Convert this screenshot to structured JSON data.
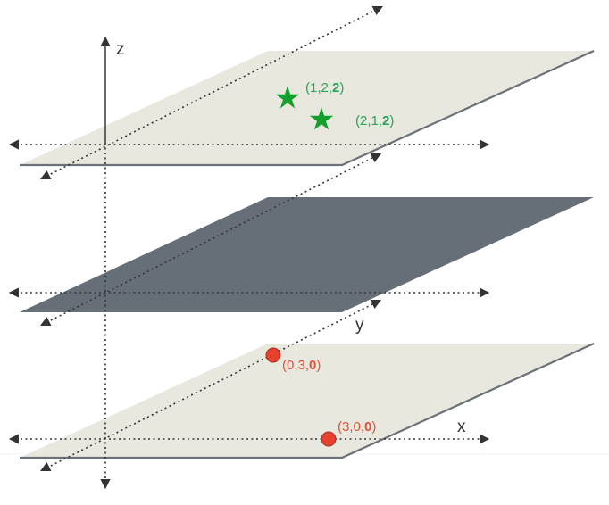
{
  "axes": {
    "x_label": "x",
    "y_label": "y",
    "z_label": "z"
  },
  "planes": [
    {
      "name": "top-plane",
      "fill": "#e8e8de",
      "edge": "#6b7178"
    },
    {
      "name": "middle-plane",
      "fill": "#666e77",
      "edge": "#5d646d"
    },
    {
      "name": "bottom-plane",
      "fill": "#e8e8de",
      "edge": "#6b7178"
    }
  ],
  "points": {
    "stars": [
      {
        "label_pre": "(1,2,",
        "label_bold": "2",
        "label_post": ")"
      },
      {
        "label_pre": "(2,1,",
        "label_bold": "2",
        "label_post": ")"
      }
    ],
    "dots": [
      {
        "label_pre": "(0,3,",
        "label_bold": "0",
        "label_post": ")"
      },
      {
        "label_pre": "(3,0,",
        "label_bold": "0",
        "label_post": ")"
      }
    ]
  },
  "colors": {
    "star": "#14a02c",
    "star_text": "#27a65a",
    "dot": "#e8402f",
    "dot_text": "#e0533b",
    "axis": "#333333"
  }
}
